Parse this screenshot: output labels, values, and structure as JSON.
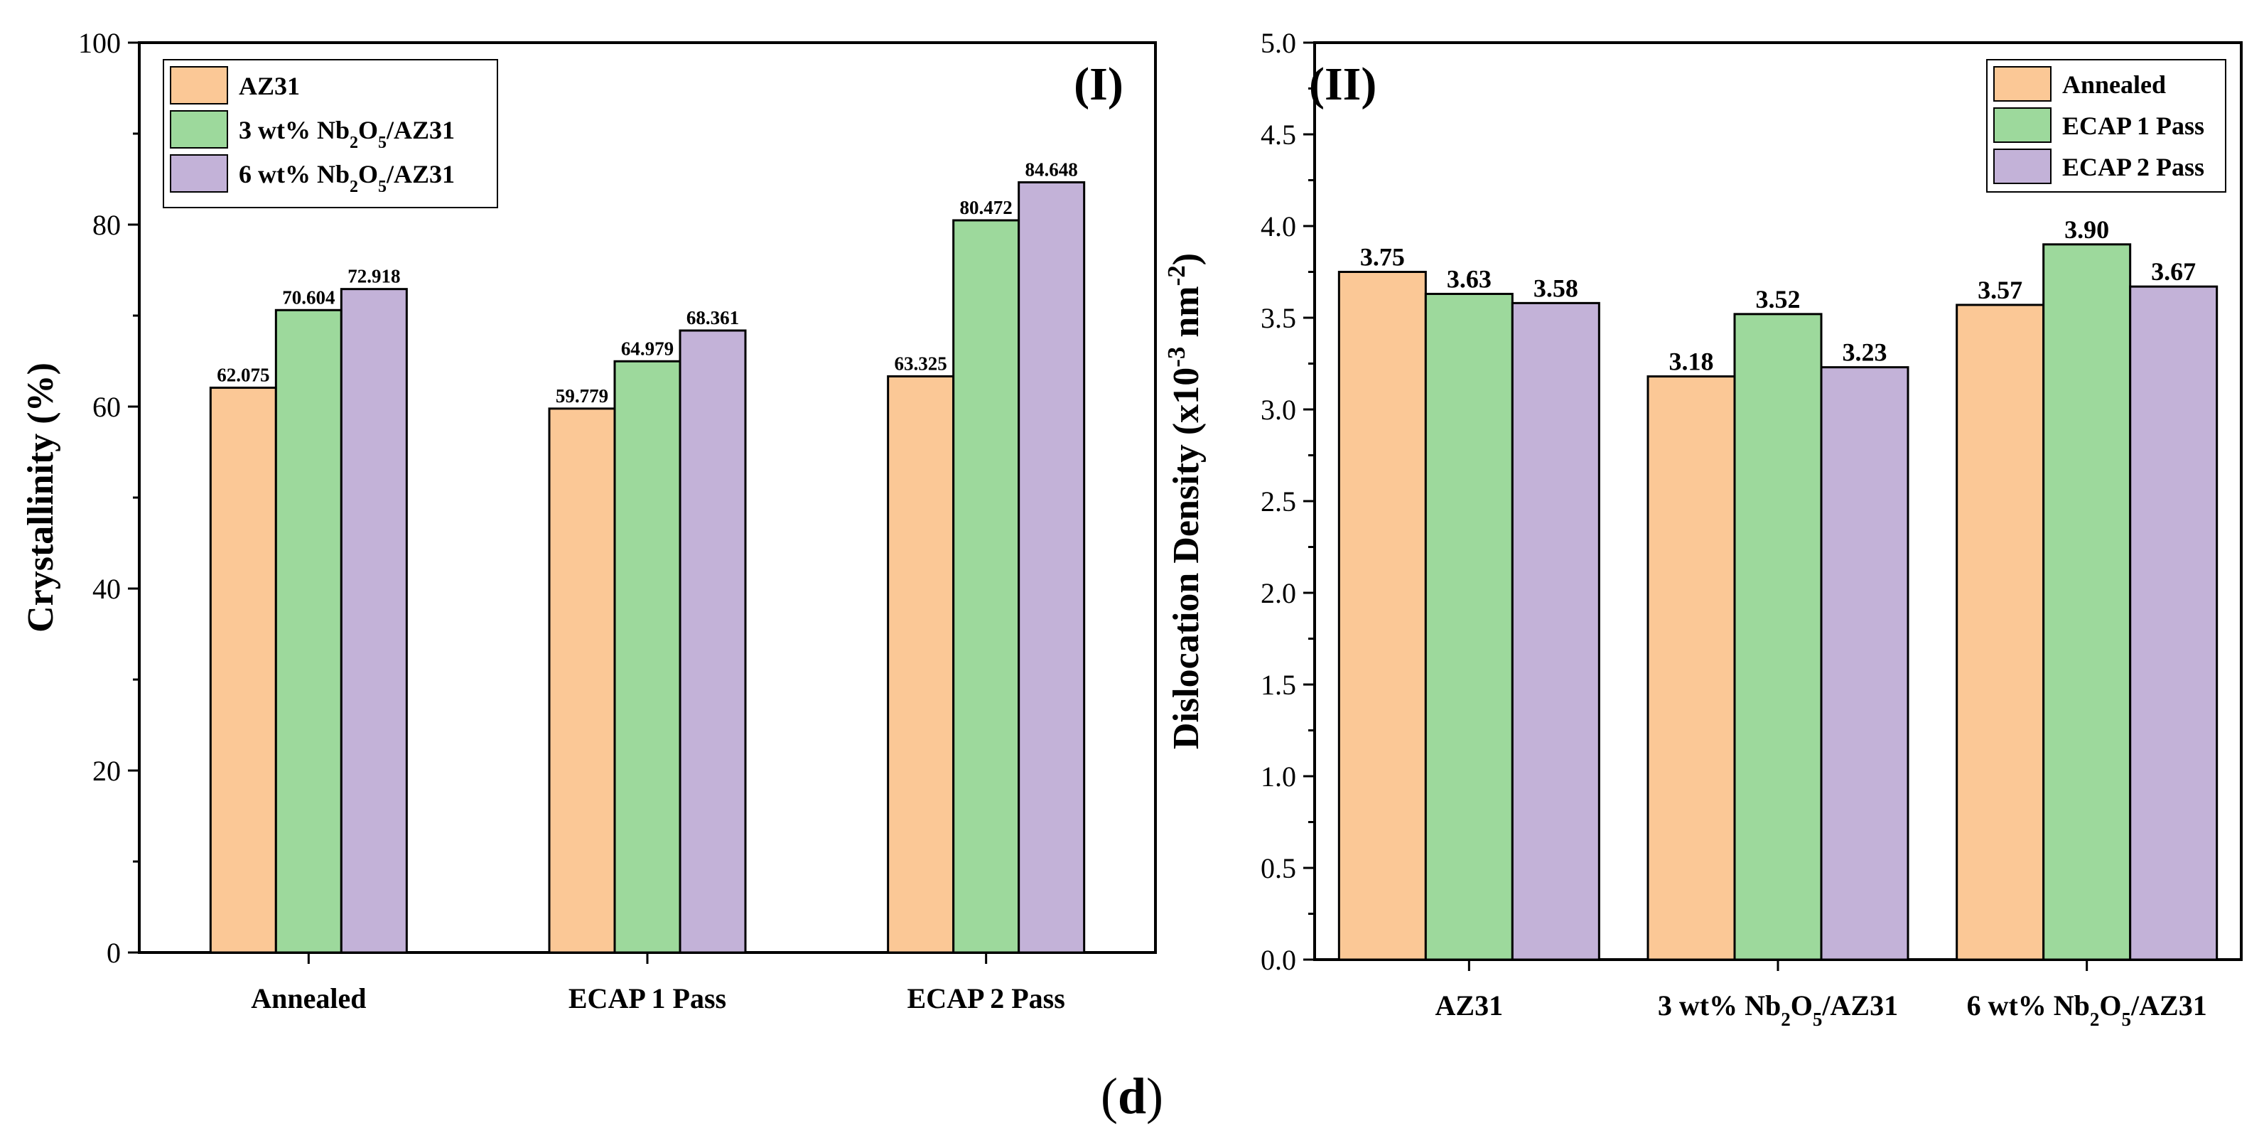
{
  "caption": {
    "open": "(",
    "letter": "d",
    "close": ")"
  },
  "chart_data": [
    {
      "type": "bar",
      "panel_label": "(I)",
      "ylabel": "Crystallinity (%)",
      "xlabel": "",
      "categories": [
        "Annealed",
        "ECAP 1 Pass",
        "ECAP 2 Pass"
      ],
      "ylim": [
        0,
        100
      ],
      "yticks": [
        0,
        20,
        40,
        60,
        80,
        100
      ],
      "ytick_labels": [
        "0",
        "20",
        "40",
        "60",
        "80",
        "100"
      ],
      "legend_position": "top-left",
      "series": [
        {
          "name": "AZ31",
          "legend_parts": [
            {
              "t": "AZ31",
              "s": ""
            }
          ],
          "color": "#fbc896",
          "values": [
            62.075,
            59.779,
            63.325
          ],
          "labels": [
            "62.075",
            "59.779",
            "63.325"
          ]
        },
        {
          "name": "3 wt% Nb2O5/AZ31",
          "legend_parts": [
            {
              "t": "3 wt% Nb",
              "s": ""
            },
            {
              "t": "2",
              "s": "sub"
            },
            {
              "t": "O",
              "s": ""
            },
            {
              "t": "5",
              "s": "sub"
            },
            {
              "t": "/AZ31",
              "s": ""
            }
          ],
          "color": "#9dd99c",
          "values": [
            70.604,
            64.979,
            80.472
          ],
          "labels": [
            "70.604",
            "64.979",
            "80.472"
          ]
        },
        {
          "name": "6 wt% Nb2O5/AZ31",
          "legend_parts": [
            {
              "t": "6 wt% Nb",
              "s": ""
            },
            {
              "t": "2",
              "s": "sub"
            },
            {
              "t": "O",
              "s": ""
            },
            {
              "t": "5",
              "s": "sub"
            },
            {
              "t": "/AZ31",
              "s": ""
            }
          ],
          "color": "#c3b2d8",
          "values": [
            72.918,
            68.361,
            84.648
          ],
          "labels": [
            "72.918",
            "68.361",
            "84.648"
          ]
        }
      ]
    },
    {
      "type": "bar",
      "panel_label": "(II)",
      "ylabel": "Dislocation Density (x10⁻³ nm⁻²)",
      "ylabel_parts": [
        {
          "t": "Dislocation Density (x10",
          "s": ""
        },
        {
          "t": "-3",
          "s": "sup"
        },
        {
          "t": " nm",
          "s": ""
        },
        {
          "t": "-2",
          "s": "sup"
        },
        {
          "t": ")",
          "s": ""
        }
      ],
      "xlabel": "",
      "categories": [
        "AZ31",
        "3 wt% Nb2O5/AZ31",
        "6 wt% Nb2O5/AZ31"
      ],
      "category_parts": [
        [
          {
            "t": "AZ31",
            "s": ""
          }
        ],
        [
          {
            "t": "3 wt% Nb",
            "s": ""
          },
          {
            "t": "2",
            "s": "sub"
          },
          {
            "t": "O",
            "s": ""
          },
          {
            "t": "5",
            "s": "sub"
          },
          {
            "t": "/AZ31",
            "s": ""
          }
        ],
        [
          {
            "t": "6 wt% Nb",
            "s": ""
          },
          {
            "t": "2",
            "s": "sub"
          },
          {
            "t": "O",
            "s": ""
          },
          {
            "t": "5",
            "s": "sub"
          },
          {
            "t": "/AZ31",
            "s": ""
          }
        ]
      ],
      "ylim": [
        0,
        5
      ],
      "yticks": [
        0,
        0.5,
        1,
        1.5,
        2,
        2.5,
        3,
        3.5,
        4,
        4.5,
        5
      ],
      "ytick_labels": [
        "0.0",
        "0.5",
        "1.0",
        "1.5",
        "2.0",
        "2.5",
        "3.0",
        "3.5",
        "4.0",
        "4.5",
        "5.0"
      ],
      "legend_position": "top-right",
      "series": [
        {
          "name": "Annealed",
          "color": "#fbc896",
          "values": [
            3.75,
            3.18,
            3.57
          ],
          "labels": [
            "3.75",
            "3.18",
            "3.57"
          ]
        },
        {
          "name": "ECAP 1 Pass",
          "color": "#9dd99c",
          "values": [
            3.63,
            3.52,
            3.9
          ],
          "labels": [
            "3.63",
            "3.52",
            "3.90"
          ]
        },
        {
          "name": "ECAP 2 Pass",
          "color": "#c3b2d8",
          "values": [
            3.58,
            3.23,
            3.67
          ],
          "labels": [
            "3.58",
            "3.23",
            "3.67"
          ]
        }
      ]
    }
  ]
}
